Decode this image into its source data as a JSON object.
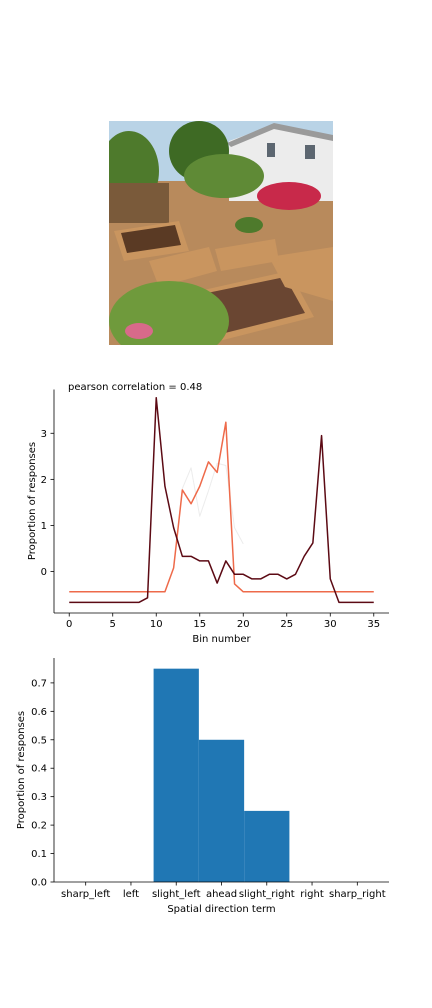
{
  "photo": {
    "subject": "garden-with-raised-beds-photo",
    "colors": {
      "sky": "#b9d3e6",
      "house": "#ececec",
      "mulch": "#b88a5c",
      "foliage": "#4e7a2c",
      "bed_wood": "#c9955f",
      "flowers": "#c8294a"
    }
  },
  "chart_data": [
    {
      "type": "line",
      "title": "pearson correlation = 0.48",
      "xlabel": "Bin number",
      "ylabel": "Proportion of responses",
      "xlim": [
        -1.75,
        36.75
      ],
      "ylim": [
        -0.9,
        3.95
      ],
      "xticks": [
        0,
        5,
        10,
        15,
        20,
        25,
        30,
        35
      ],
      "yticks": [
        0,
        1,
        2,
        3
      ],
      "grid": false,
      "legend": "none",
      "series": [
        {
          "color": "#ee6a4a",
          "width": 1.5,
          "x": [
            0,
            1,
            2,
            3,
            4,
            5,
            6,
            7,
            8,
            9,
            10,
            11,
            12,
            13,
            14,
            15,
            16,
            17,
            18,
            19,
            20,
            21,
            22,
            23,
            24,
            25,
            26,
            27,
            28,
            29,
            30,
            31,
            32,
            33,
            34,
            35
          ],
          "y": [
            -0.44,
            -0.44,
            -0.44,
            -0.44,
            -0.44,
            -0.44,
            -0.44,
            -0.44,
            -0.44,
            -0.44,
            -0.44,
            -0.44,
            0.08,
            1.77,
            1.47,
            1.85,
            2.38,
            2.15,
            3.24,
            -0.27,
            -0.44,
            -0.44,
            -0.44,
            -0.44,
            -0.44,
            -0.44,
            -0.44,
            -0.44,
            -0.44,
            -0.44,
            -0.44,
            -0.44,
            -0.44,
            -0.44,
            -0.44,
            -0.44
          ]
        },
        {
          "color": "#5c0a14",
          "width": 1.5,
          "x": [
            0,
            1,
            2,
            3,
            4,
            5,
            6,
            7,
            8,
            9,
            10,
            11,
            12,
            13,
            14,
            15,
            16,
            17,
            18,
            19,
            20,
            21,
            22,
            23,
            24,
            25,
            26,
            27,
            28,
            29,
            30,
            31,
            32,
            33,
            34,
            35
          ],
          "y": [
            -0.67,
            -0.67,
            -0.67,
            -0.67,
            -0.67,
            -0.67,
            -0.67,
            -0.67,
            -0.67,
            -0.57,
            3.77,
            1.85,
            0.95,
            0.33,
            0.33,
            0.23,
            0.23,
            -0.25,
            0.23,
            -0.06,
            -0.06,
            -0.16,
            -0.16,
            -0.06,
            -0.06,
            -0.16,
            -0.06,
            0.33,
            0.62,
            2.95,
            -0.16,
            -0.67,
            -0.67,
            -0.67,
            -0.67,
            -0.67
          ]
        },
        {
          "color": "#ececec",
          "width": 1,
          "x": [
            12,
            13,
            14,
            15,
            16,
            17,
            18,
            19,
            20
          ],
          "y": [
            0.1,
            1.8,
            2.25,
            1.2,
            1.75,
            2.35,
            2.3,
            0.95,
            0.6
          ]
        }
      ]
    },
    {
      "type": "bar",
      "xlabel": "Spatial direction term",
      "ylabel": "Proportion of responses",
      "categories": [
        "sharp_left",
        "left",
        "slight_left",
        "ahead",
        "slight_right",
        "right",
        "sharp_right"
      ],
      "values": [
        0,
        0,
        0.75,
        0.5,
        0.25,
        0,
        0
      ],
      "ylim": [
        0,
        0.7875
      ],
      "yticks": [
        "0.0",
        "0.1",
        "0.2",
        "0.3",
        "0.4",
        "0.5",
        "0.6",
        "0.7"
      ],
      "bar_color": "#2077b4",
      "grid": false,
      "legend": "none"
    }
  ]
}
